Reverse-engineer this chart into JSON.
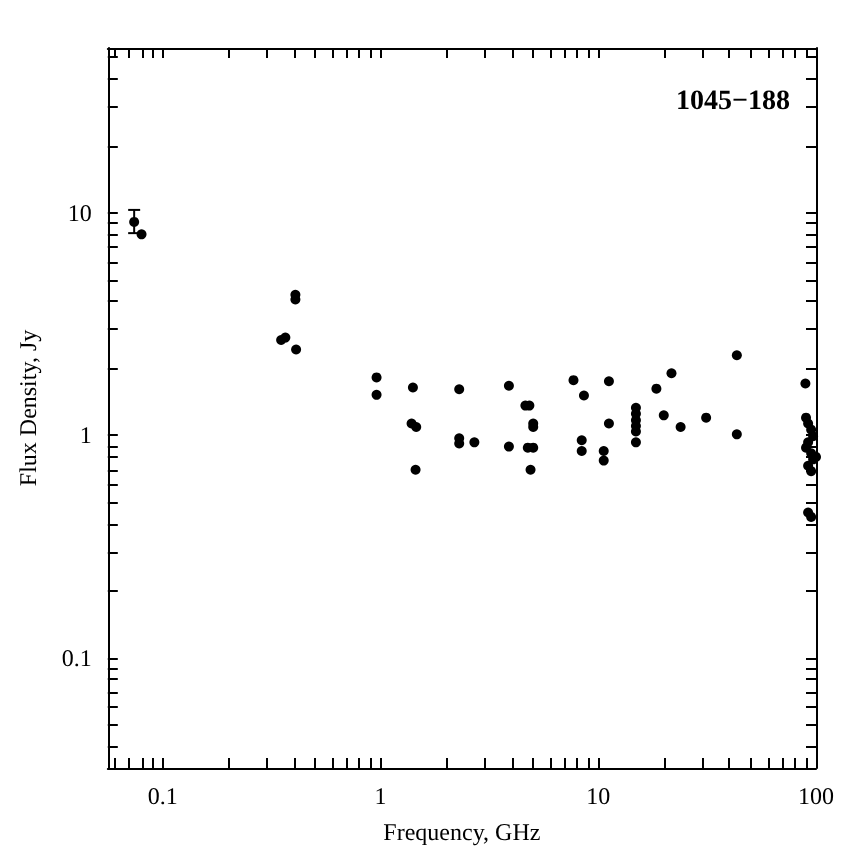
{
  "chart_data": {
    "type": "scatter",
    "xlabel": "Frequency, GHz",
    "ylabel": "Flux Density, Jy",
    "annotations": [
      "1045−188"
    ],
    "log": "xy",
    "grid": false,
    "marker": "circle",
    "xlim": [
      0.056,
      100
    ],
    "ylim": [
      0.032,
      55
    ],
    "xticks": [
      {
        "value": 0.06,
        "label": null
      },
      {
        "value": 0.07,
        "label": null
      },
      {
        "value": 0.08,
        "label": null
      },
      {
        "value": 0.09,
        "label": null
      },
      0.1,
      {
        "value": 0.2,
        "label": null
      },
      {
        "value": 0.3,
        "label": null
      },
      {
        "value": 0.4,
        "label": null
      },
      {
        "value": 0.5,
        "label": null
      },
      {
        "value": 0.6,
        "label": null
      },
      {
        "value": 0.7,
        "label": null
      },
      {
        "value": 0.8,
        "label": null
      },
      {
        "value": 0.9,
        "label": null
      },
      1,
      {
        "value": 2,
        "label": null
      },
      {
        "value": 3,
        "label": null
      },
      {
        "value": 4,
        "label": null
      },
      {
        "value": 5,
        "label": null
      },
      {
        "value": 6,
        "label": null
      },
      {
        "value": 7,
        "label": null
      },
      {
        "value": 8,
        "label": null
      },
      {
        "value": 9,
        "label": null
      },
      10,
      {
        "value": 20,
        "label": null
      },
      {
        "value": 30,
        "label": null
      },
      {
        "value": 40,
        "label": null
      },
      {
        "value": 50,
        "label": null
      },
      {
        "value": 60,
        "label": null
      },
      {
        "value": 70,
        "label": null
      },
      {
        "value": 80,
        "label": null
      },
      {
        "value": 90,
        "label": null
      },
      100
    ],
    "yticks": [
      {
        "value": 0.04,
        "label": null
      },
      {
        "value": 0.05,
        "label": null
      },
      {
        "value": 0.06,
        "label": null
      },
      {
        "value": 0.07,
        "label": null
      },
      {
        "value": 0.08,
        "label": null
      },
      {
        "value": 0.09,
        "label": null
      },
      0.1,
      {
        "value": 0.2,
        "label": null
      },
      {
        "value": 0.3,
        "label": null
      },
      {
        "value": 0.4,
        "label": null
      },
      {
        "value": 0.5,
        "label": null
      },
      {
        "value": 0.6,
        "label": null
      },
      {
        "value": 0.7,
        "label": null
      },
      {
        "value": 0.8,
        "label": null
      },
      {
        "value": 0.9,
        "label": null
      },
      1,
      {
        "value": 2,
        "label": null
      },
      {
        "value": 3,
        "label": null
      },
      {
        "value": 4,
        "label": null
      },
      {
        "value": 5,
        "label": null
      },
      {
        "value": 6,
        "label": null
      },
      {
        "value": 7,
        "label": null
      },
      {
        "value": 8,
        "label": null
      },
      {
        "value": 9,
        "label": null
      },
      10,
      {
        "value": 20,
        "label": null
      },
      {
        "value": 30,
        "label": null
      },
      {
        "value": 40,
        "label": null
      },
      {
        "value": 50,
        "label": null
      }
    ],
    "series": [
      {
        "color": "#000000",
        "x": [
          0.074,
          0.08,
          0.407,
          0.407,
          0.35,
          0.366,
          0.41,
          0.96,
          0.96,
          1.41,
          1.39,
          1.46,
          1.45,
          2.3,
          2.3,
          2.3,
          2.7,
          3.89,
          3.89,
          4.63,
          4.83,
          5.03,
          5.03,
          4.75,
          5.03,
          4.89,
          7.7,
          8.6,
          8.4,
          8.4,
          11.2,
          11.2,
          10.6,
          10.6,
          14.9,
          14.9,
          14.9,
          14.9,
          14.9,
          14.9,
          18.5,
          21.7,
          20.0,
          23.9,
          31.3,
          43.3,
          43.3,
          89.4,
          90,
          92,
          95,
          97,
          92,
          90,
          95,
          97,
          92,
          95,
          100,
          92,
          95
        ],
        "values": [
          9.1,
          8.0,
          4.28,
          4.08,
          2.68,
          2.75,
          2.43,
          1.82,
          1.52,
          1.64,
          1.13,
          1.09,
          0.7,
          1.61,
          0.97,
          0.92,
          0.93,
          1.67,
          0.89,
          1.36,
          1.36,
          1.13,
          1.09,
          0.88,
          0.88,
          0.7,
          1.77,
          1.51,
          0.95,
          0.85,
          1.75,
          1.13,
          0.85,
          0.77,
          1.33,
          1.25,
          1.17,
          1.1,
          1.04,
          0.93,
          1.62,
          1.9,
          1.23,
          1.09,
          1.2,
          2.29,
          1.01,
          1.71,
          1.2,
          1.13,
          1.06,
          0.99,
          0.93,
          0.88,
          0.83,
          0.78,
          0.73,
          0.69,
          0.8,
          0.45,
          0.43
        ],
        "errors": [
          [
            8.1,
            10.3
          ],
          null,
          null,
          null,
          null,
          null,
          null,
          null,
          null,
          null,
          null,
          null,
          null,
          null,
          null,
          null,
          null,
          null,
          null,
          null,
          null,
          null,
          null,
          null,
          null,
          null,
          null,
          null,
          null,
          null,
          null,
          null,
          null,
          null,
          null,
          null,
          null,
          null,
          null,
          null,
          null,
          null,
          null,
          null,
          null,
          null,
          null,
          null,
          null,
          null,
          null,
          null,
          null,
          null,
          null,
          null,
          null,
          null,
          null,
          null,
          null
        ]
      }
    ]
  }
}
